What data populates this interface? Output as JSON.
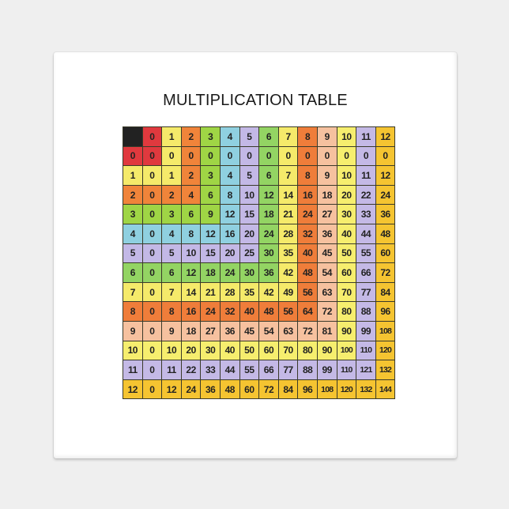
{
  "title": "MULTIPLICATION TABLE",
  "corner_color": "#222222",
  "factor_colors": [
    "#e0393e",
    "#f5ea6a",
    "#f0843a",
    "#9fd545",
    "#8fd0e0",
    "#c3b8e6",
    "#93d463",
    "#f5ea6a",
    "#ef7d3a",
    "#f6c19f",
    "#f6ee6e",
    "#c4b9e6",
    "#f5c431"
  ],
  "header": [
    "0",
    "1",
    "2",
    "3",
    "4",
    "5",
    "6",
    "7",
    "8",
    "9",
    "10",
    "11",
    "12"
  ],
  "rows": [
    {
      "label": "0",
      "values": [
        "0",
        "0",
        "0",
        "0",
        "0",
        "0",
        "0",
        "0",
        "0",
        "0",
        "0",
        "0",
        "0"
      ]
    },
    {
      "label": "1",
      "values": [
        "0",
        "1",
        "2",
        "3",
        "4",
        "5",
        "6",
        "7",
        "8",
        "9",
        "10",
        "11",
        "12"
      ]
    },
    {
      "label": "2",
      "values": [
        "0",
        "2",
        "4",
        "6",
        "8",
        "10",
        "12",
        "14",
        "16",
        "18",
        "20",
        "22",
        "24"
      ]
    },
    {
      "label": "3",
      "values": [
        "0",
        "3",
        "6",
        "9",
        "12",
        "15",
        "18",
        "21",
        "24",
        "27",
        "30",
        "33",
        "36"
      ]
    },
    {
      "label": "4",
      "values": [
        "0",
        "4",
        "8",
        "12",
        "16",
        "20",
        "24",
        "28",
        "32",
        "36",
        "40",
        "44",
        "48"
      ]
    },
    {
      "label": "5",
      "values": [
        "0",
        "5",
        "10",
        "15",
        "20",
        "25",
        "30",
        "35",
        "40",
        "45",
        "50",
        "55",
        "60"
      ]
    },
    {
      "label": "6",
      "values": [
        "0",
        "6",
        "12",
        "18",
        "24",
        "30",
        "36",
        "42",
        "48",
        "54",
        "60",
        "66",
        "72"
      ]
    },
    {
      "label": "7",
      "values": [
        "0",
        "7",
        "14",
        "21",
        "28",
        "35",
        "42",
        "49",
        "56",
        "63",
        "70",
        "77",
        "84"
      ]
    },
    {
      "label": "8",
      "values": [
        "0",
        "8",
        "16",
        "24",
        "32",
        "40",
        "48",
        "56",
        "64",
        "72",
        "80",
        "88",
        "96"
      ]
    },
    {
      "label": "9",
      "values": [
        "0",
        "9",
        "18",
        "27",
        "36",
        "45",
        "54",
        "63",
        "72",
        "81",
        "90",
        "99",
        "108"
      ]
    },
    {
      "label": "10",
      "values": [
        "0",
        "10",
        "20",
        "30",
        "40",
        "50",
        "60",
        "70",
        "80",
        "90",
        "100",
        "110",
        "120"
      ]
    },
    {
      "label": "11",
      "values": [
        "0",
        "11",
        "22",
        "33",
        "44",
        "55",
        "66",
        "77",
        "88",
        "99",
        "110",
        "121",
        "132"
      ]
    },
    {
      "label": "12",
      "values": [
        "0",
        "12",
        "24",
        "36",
        "48",
        "60",
        "72",
        "84",
        "96",
        "108",
        "120",
        "132",
        "144"
      ]
    }
  ]
}
